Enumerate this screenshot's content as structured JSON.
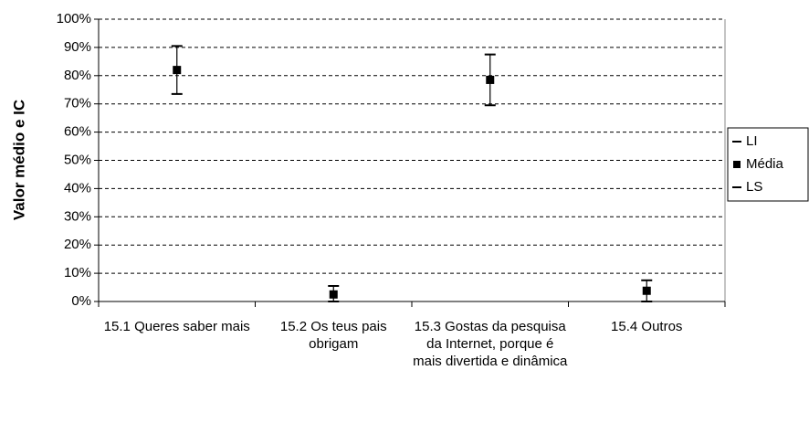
{
  "chart_data": {
    "type": "stock",
    "y_label": "Valor médio e IC",
    "categories": [
      "15.1 Queres saber mais",
      "15.2 Os teus pais obrigam",
      "15.3 Gostas da pesquisa da Internet, porque é mais divertida e dinâmica",
      "15.4 Outros"
    ],
    "series": [
      {
        "name": "LI",
        "color": "#000000",
        "values": [
          73.5,
          0,
          69.5,
          0
        ]
      },
      {
        "name": "Média",
        "color": "#000000",
        "values": [
          82,
          2.5,
          78.5,
          3.8
        ]
      },
      {
        "name": "LS",
        "color": "#000000",
        "values": [
          90.5,
          5.5,
          87.5,
          7.5
        ]
      }
    ],
    "ylim": [
      0,
      100
    ],
    "yticks": [
      {
        "value": 0,
        "label": "0%"
      },
      {
        "value": 10,
        "label": "10%"
      },
      {
        "value": 20,
        "label": "20%"
      },
      {
        "value": 30,
        "label": "30%"
      },
      {
        "value": 40,
        "label": "40%"
      },
      {
        "value": 50,
        "label": "50%"
      },
      {
        "value": 60,
        "label": "60%"
      },
      {
        "value": 70,
        "label": "70%"
      },
      {
        "value": 80,
        "label": "80%"
      },
      {
        "value": 90,
        "label": "90%"
      },
      {
        "value": 100,
        "label": "100%"
      }
    ],
    "grid": true,
    "legend": "right"
  }
}
